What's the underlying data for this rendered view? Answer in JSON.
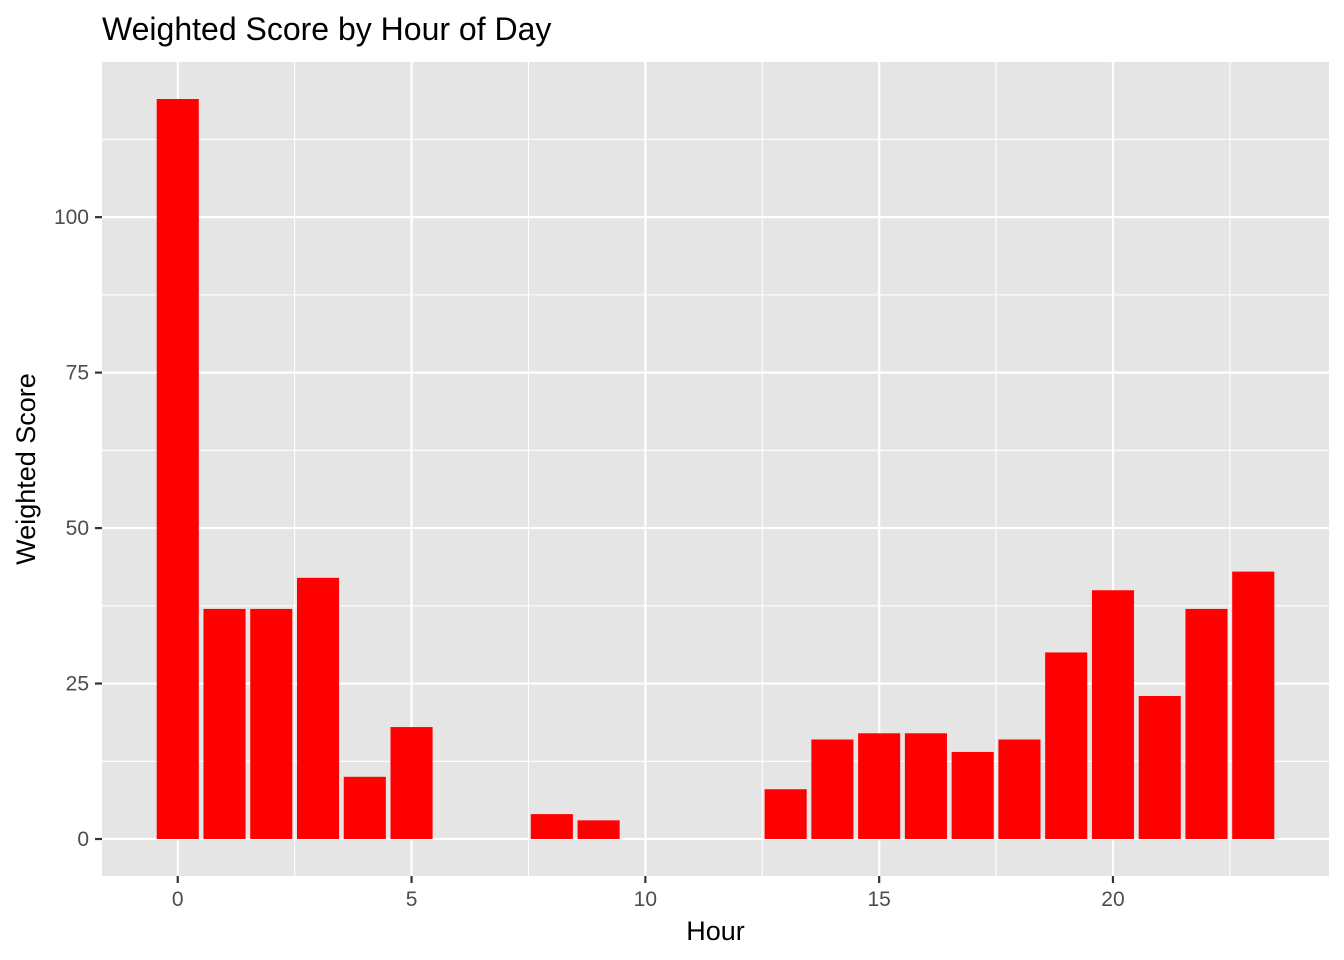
{
  "chart_data": {
    "type": "bar",
    "title": "Weighted Score by Hour of Day",
    "xlabel": "Hour",
    "ylabel": "Weighted Score",
    "x": [
      0,
      1,
      2,
      3,
      4,
      5,
      8,
      9,
      13,
      14,
      15,
      16,
      17,
      18,
      19,
      20,
      21,
      22,
      23
    ],
    "values": [
      119,
      37,
      37,
      42,
      10,
      18,
      4,
      3,
      8,
      16,
      17,
      17,
      14,
      16,
      30,
      40,
      23,
      37,
      43
    ],
    "xlim": [
      -1.62,
      24.62
    ],
    "ylim": [
      -5.95,
      124.95
    ],
    "x_ticks": [
      0,
      5,
      10,
      15,
      20
    ],
    "y_ticks": [
      0,
      25,
      50,
      75,
      100
    ],
    "bar_width": 0.9,
    "bar_color": "#ff0000",
    "panel_background": "#e5e5e5",
    "grid_color": "#ffffff",
    "grid": true,
    "legend": "none"
  }
}
